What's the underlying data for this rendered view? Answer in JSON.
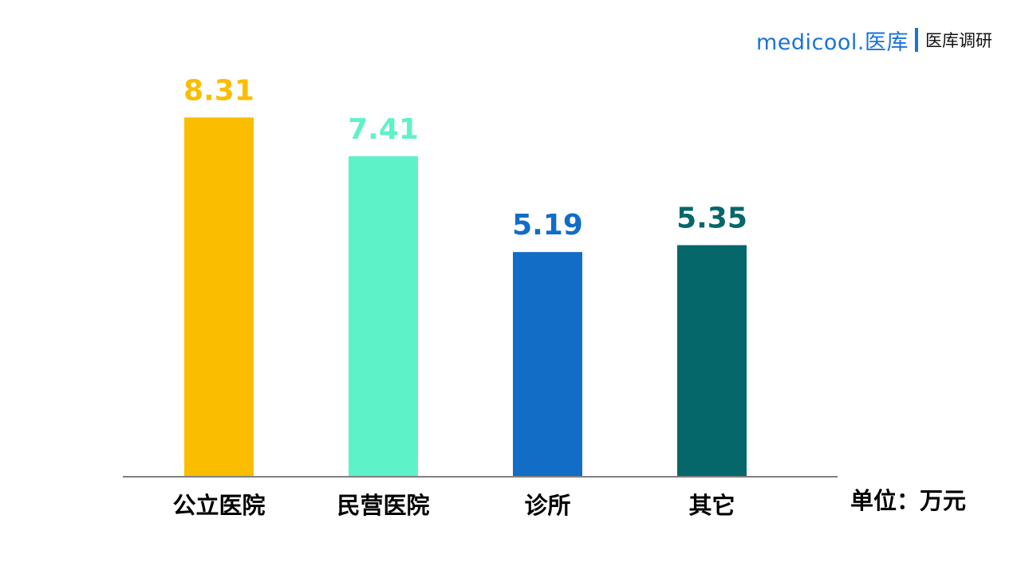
{
  "brand": {
    "logo_text": "medicool.医库",
    "caption": "医库调研",
    "logo_color": "#1a73d8",
    "divider_color": "#1a73d8"
  },
  "chart_data": {
    "type": "bar",
    "categories": [
      "公立医院",
      "民营医院",
      "诊所",
      "其它"
    ],
    "values": [
      8.31,
      7.41,
      5.19,
      5.35
    ],
    "value_labels": [
      "8.31",
      "7.41",
      "5.19",
      "5.35"
    ],
    "colors": [
      "#fbbd00",
      "#5ef2c8",
      "#116dc6",
      "#05676a"
    ],
    "ylim": [
      0,
      9
    ],
    "grid": false,
    "unit_label": "单位：万元"
  }
}
